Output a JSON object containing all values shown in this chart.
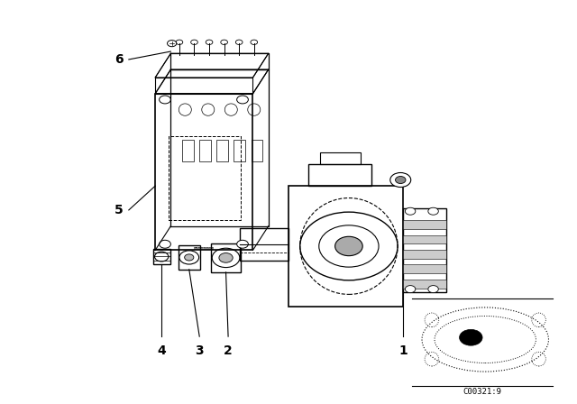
{
  "bg_color": "#ffffff",
  "line_color": "#000000",
  "fig_width": 6.4,
  "fig_height": 4.48,
  "dpi": 100,
  "watermark": "C00321:9"
}
